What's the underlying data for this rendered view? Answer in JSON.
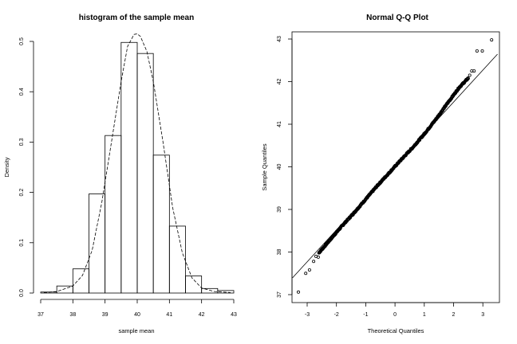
{
  "chart_data": [
    {
      "type": "bar",
      "title": "histogram of the sample mean",
      "xlabel": "sample mean",
      "ylabel": "Density",
      "xlim": [
        37,
        43
      ],
      "ylim": [
        0,
        0.52
      ],
      "xticks": [
        "37",
        "38",
        "39",
        "40",
        "41",
        "42",
        "43"
      ],
      "yticks": [
        "0.0",
        "0.1",
        "0.2",
        "0.3",
        "0.4",
        "0.5"
      ],
      "bin_edges": [
        37,
        37.5,
        38,
        38.5,
        39,
        39.5,
        40,
        40.5,
        41,
        41.5,
        42,
        42.5,
        43
      ],
      "values": [
        0.002,
        0.014,
        0.048,
        0.197,
        0.313,
        0.498,
        0.476,
        0.274,
        0.133,
        0.034,
        0.009,
        0.005
      ],
      "density_curve": {
        "style": "dashed",
        "x": [
          37.1,
          37.5,
          38.0,
          38.3,
          38.6,
          38.9,
          39.2,
          39.5,
          39.7,
          39.9,
          40.0,
          40.1,
          40.3,
          40.5,
          40.8,
          41.1,
          41.4,
          41.7,
          42.0,
          42.4,
          42.9
        ],
        "y": [
          0.001,
          0.003,
          0.014,
          0.035,
          0.085,
          0.18,
          0.3,
          0.42,
          0.49,
          0.514,
          0.515,
          0.51,
          0.48,
          0.42,
          0.3,
          0.17,
          0.08,
          0.03,
          0.01,
          0.003,
          0.001
        ]
      }
    },
    {
      "type": "scatter",
      "title": "Normal Q-Q Plot",
      "xlabel": "Theoretical Quantiles",
      "ylabel": "Sample Quantiles",
      "xlim": [
        -3.5,
        3.5
      ],
      "ylim": [
        37,
        43
      ],
      "xticks": [
        "-3",
        "-2",
        "-1",
        "0",
        "1",
        "2",
        "3"
      ],
      "yticks": [
        "37",
        "38",
        "39",
        "40",
        "41",
        "42",
        "43"
      ],
      "reference_line": {
        "intercept": 40.02,
        "slope": 0.75
      },
      "outlier_points": [
        {
          "x": -3.3,
          "y": 37.06
        },
        {
          "x": -3.05,
          "y": 37.5
        },
        {
          "x": -2.92,
          "y": 37.58
        },
        {
          "x": -2.78,
          "y": 37.78
        },
        {
          "x": -2.7,
          "y": 37.9
        },
        {
          "x": -2.62,
          "y": 37.88
        },
        {
          "x": 2.55,
          "y": 42.15
        },
        {
          "x": 2.62,
          "y": 42.25
        },
        {
          "x": 2.7,
          "y": 42.25
        },
        {
          "x": 2.8,
          "y": 42.72
        },
        {
          "x": 2.98,
          "y": 42.72
        },
        {
          "x": 3.3,
          "y": 42.98
        }
      ],
      "body_curve": {
        "x": [
          -2.6,
          -2.2,
          -1.8,
          -1.4,
          -1.0,
          -0.6,
          -0.2,
          0.2,
          0.6,
          1.0,
          1.4,
          1.8,
          2.2,
          2.5
        ],
        "y": [
          37.98,
          38.3,
          38.62,
          38.92,
          39.24,
          39.56,
          39.86,
          40.16,
          40.45,
          40.77,
          41.12,
          41.5,
          41.87,
          42.08
        ]
      },
      "n_points": 500
    }
  ]
}
